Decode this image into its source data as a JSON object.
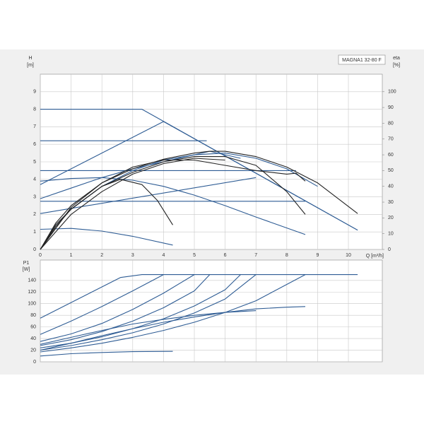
{
  "chart_data": [
    {
      "type": "line",
      "title": "MAGNA1 32-80 F",
      "y_label": "H",
      "y_unit": "[m]",
      "y2_label": "eta",
      "y2_unit": "[%]",
      "x_label": "Q [m³/h]",
      "xlim": [
        0,
        11.1
      ],
      "xticks": [
        0,
        1,
        2,
        3,
        4,
        5,
        6,
        7,
        8,
        9,
        10
      ],
      "ylim": [
        0,
        10
      ],
      "yticks": [
        0,
        1,
        2,
        3,
        4,
        5,
        6,
        7,
        8,
        9
      ],
      "y2lim": [
        0,
        111.1
      ],
      "y2ticks": [
        0,
        10,
        20,
        30,
        40,
        50,
        60,
        70,
        80,
        90,
        100
      ],
      "grid": true,
      "series": [
        {
          "color": "#2e5c94",
          "x": [
            0,
            3.3,
            10.3
          ],
          "values": [
            8,
            8,
            1.1
          ]
        },
        {
          "color": "#2e5c94",
          "x": [
            0,
            4,
            10.3
          ],
          "values": [
            3.7,
            7.3,
            1.1
          ]
        },
        {
          "color": "#2e5c94",
          "x": [
            0,
            5.4
          ],
          "values": [
            6.2,
            6.2
          ]
        },
        {
          "color": "#2e5c94",
          "x": [
            0,
            8.3
          ],
          "values": [
            4.5,
            4.5
          ]
        },
        {
          "color": "#2e5c94",
          "x": [
            0,
            8.6
          ],
          "values": [
            2.75,
            2.75
          ]
        },
        {
          "color": "#2e5c94",
          "x": [
            0,
            7
          ],
          "values": [
            2.05,
            4.1
          ]
        },
        {
          "color": "#2e5c94",
          "x": [
            0,
            1,
            2,
            3,
            4,
            5,
            6,
            7,
            8.6
          ],
          "values": [
            3.9,
            4.05,
            4.1,
            3.95,
            3.6,
            3.1,
            2.5,
            1.85,
            0.85
          ]
        },
        {
          "color": "#2e5c94",
          "x": [
            0,
            1,
            2,
            3,
            4.3
          ],
          "values": [
            1.15,
            1.2,
            1.05,
            0.75,
            0.25
          ]
        },
        {
          "color": "#2e5c94",
          "x": [
            0,
            1,
            2,
            3,
            4,
            5.5,
            6.5
          ],
          "values": [
            2.9,
            3.5,
            4.1,
            4.6,
            5,
            5.6,
            5.2
          ]
        },
        {
          "color": "#2e5c94",
          "x": [
            0,
            0.5,
            1,
            2,
            3,
            4,
            5,
            6,
            7,
            8,
            9
          ],
          "values": [
            0,
            1.4,
            2.3,
            3.6,
            4.5,
            5.1,
            5.4,
            5.5,
            5.2,
            4.6,
            3.6
          ]
        },
        {
          "color": "#222222",
          "x": [
            0,
            0.5,
            1,
            2,
            3,
            4,
            5,
            5.5,
            6,
            7,
            8,
            9,
            10.3
          ],
          "values": [
            0,
            1.5,
            2.5,
            3.8,
            4.6,
            5.15,
            5.5,
            5.6,
            5.6,
            5.3,
            4.7,
            3.8,
            2.05
          ]
        },
        {
          "color": "#222222",
          "x": [
            0,
            0.5,
            1,
            2,
            3,
            4,
            5,
            6,
            7,
            8,
            8.6
          ],
          "values": [
            0,
            1.4,
            2.3,
            3.6,
            4.4,
            5,
            5.3,
            5.3,
            4.8,
            3.3,
            2
          ]
        },
        {
          "color": "#222222",
          "x": [
            0,
            1,
            2,
            3,
            4,
            5,
            6,
            7,
            8,
            8.3,
            8.6
          ],
          "values": [
            0,
            2.4,
            3.8,
            4.7,
            5.1,
            5.1,
            4.8,
            4.5,
            4.3,
            4.35,
            3.9
          ]
        },
        {
          "color": "#222222",
          "x": [
            0,
            0.5,
            1,
            2,
            2.6,
            3.3,
            3.8,
            4.3
          ],
          "values": [
            0,
            1.3,
            2.3,
            3.6,
            4,
            3.7,
            2.8,
            1.4
          ]
        },
        {
          "color": "#222222",
          "x": [
            0,
            1,
            2,
            3,
            4,
            5,
            6
          ],
          "values": [
            0,
            2,
            3.3,
            4.3,
            4.9,
            5.2,
            5.1
          ]
        }
      ]
    },
    {
      "type": "line",
      "y_label": "P1",
      "y_unit": "[W]",
      "xlim": [
        0,
        11.1
      ],
      "ylim": [
        0,
        175
      ],
      "yticks": [
        0,
        20,
        40,
        60,
        80,
        100,
        120,
        140
      ],
      "grid": true,
      "series": [
        {
          "color": "#2e5c94",
          "x": [
            0,
            2.6,
            3.3,
            10.3
          ],
          "values": [
            75,
            145,
            150,
            150
          ]
        },
        {
          "color": "#2e5c94",
          "x": [
            0,
            1,
            2,
            3,
            4
          ],
          "values": [
            47,
            70,
            95,
            122,
            150
          ]
        },
        {
          "color": "#2e5c94",
          "x": [
            0,
            1,
            2,
            3,
            4,
            5
          ],
          "values": [
            35,
            48,
            66,
            90,
            118,
            150
          ]
        },
        {
          "color": "#2e5c94",
          "x": [
            0,
            1,
            2,
            3,
            4,
            5,
            5.5
          ],
          "values": [
            28,
            38,
            52,
            70,
            93,
            122,
            150
          ]
        },
        {
          "color": "#2e5c94",
          "x": [
            0,
            1,
            2,
            3,
            4,
            5,
            6,
            6.5
          ],
          "values": [
            24,
            32,
            43,
            57,
            74,
            96,
            124,
            150
          ]
        },
        {
          "color": "#2e5c94",
          "x": [
            0,
            1,
            2,
            3,
            4,
            5,
            6,
            7
          ],
          "values": [
            20,
            28,
            38,
            50,
            65,
            84,
            108,
            150
          ]
        },
        {
          "color": "#2e5c94",
          "x": [
            0,
            1,
            2,
            3,
            4,
            5,
            6,
            7,
            8.6
          ],
          "values": [
            17,
            24,
            32,
            42,
            54,
            68,
            85,
            105,
            150
          ]
        },
        {
          "color": "#2e5c94",
          "x": [
            0,
            1,
            2,
            3,
            4,
            5,
            6,
            7,
            8,
            8.6
          ],
          "values": [
            20,
            32,
            45,
            57,
            68,
            77,
            85,
            91,
            94,
            95
          ]
        },
        {
          "color": "#2e5c94",
          "x": [
            0,
            1,
            2,
            3,
            4.3
          ],
          "values": [
            10,
            14,
            16,
            17.5,
            18
          ]
        },
        {
          "color": "#2e5c94",
          "x": [
            0,
            1,
            2,
            3,
            4,
            5,
            6,
            7
          ],
          "values": [
            30,
            42,
            54,
            65,
            73,
            80,
            85,
            88
          ]
        }
      ]
    }
  ]
}
